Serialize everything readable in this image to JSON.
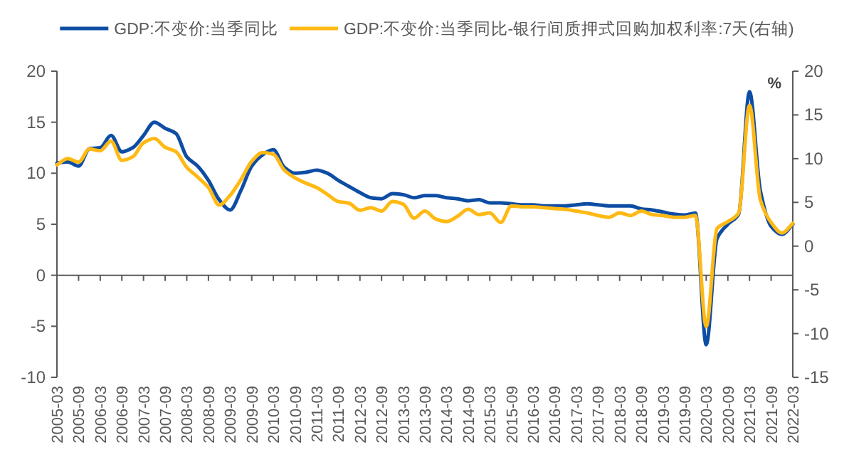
{
  "chart_data": {
    "type": "line",
    "legend": "top",
    "y2label": "%",
    "categories": [
      "2005-03",
      null,
      "2005-09",
      null,
      "2006-03",
      null,
      "2006-09",
      null,
      "2007-03",
      null,
      "2007-09",
      null,
      "2008-03",
      null,
      "2008-09",
      null,
      "2009-03",
      null,
      "2009-09",
      null,
      "2010-03",
      null,
      "2010-09",
      null,
      "2011-03",
      null,
      "2011-09",
      null,
      "2012-03",
      null,
      "2012-09",
      null,
      "2013-03",
      null,
      "2013-09",
      null,
      "2014-03",
      null,
      "2014-09",
      null,
      "2015-03",
      null,
      "2015-09",
      null,
      "2016-03",
      null,
      "2016-09",
      null,
      "2017-03",
      null,
      "2017-09",
      null,
      "2018-03",
      null,
      "2018-09",
      null,
      "2019-03",
      null,
      "2019-09",
      null,
      "2020-03",
      null,
      "2020-09",
      null,
      "2021-03",
      null,
      "2021-09",
      null,
      "2022-03"
    ],
    "ylim": [
      -10,
      20
    ],
    "yticks": [
      -10,
      -5,
      0,
      5,
      10,
      15,
      20
    ],
    "y2lim": [
      -15,
      20
    ],
    "y2ticks": [
      -15,
      -10,
      -5,
      0,
      5,
      10,
      15,
      20
    ],
    "series": [
      {
        "name": "GDP:不变价:当季同比",
        "color": "#0e4da4",
        "values": [
          11.0,
          11.1,
          10.7,
          12.4,
          12.5,
          13.7,
          12.1,
          12.5,
          13.7,
          15.0,
          14.4,
          13.9,
          11.6,
          10.7,
          9.3,
          7.4,
          6.4,
          8.3,
          10.7,
          11.8,
          12.3,
          10.6,
          10.0,
          10.1,
          10.3,
          10.0,
          9.3,
          8.7,
          8.1,
          7.6,
          7.5,
          8.0,
          7.9,
          7.6,
          7.8,
          7.8,
          7.6,
          7.5,
          7.3,
          7.4,
          7.1,
          7.1,
          7.0,
          6.9,
          6.9,
          6.8,
          6.8,
          6.8,
          6.9,
          7.0,
          6.9,
          6.8,
          6.8,
          6.8,
          6.5,
          6.4,
          6.2,
          6.0,
          5.9,
          6.1,
          -6.8,
          3.6,
          5.0,
          6.0,
          18.0,
          8.3,
          4.8,
          4.0,
          5.0
        ]
      },
      {
        "name": "GDP:不变价:当季同比-银行间质押式回购加权利率:7天(右轴)",
        "color": "#ffb914",
        "axis": "y2",
        "values": [
          9.3,
          10.0,
          9.6,
          11.1,
          10.9,
          12.0,
          9.8,
          10.2,
          11.8,
          12.3,
          11.3,
          10.8,
          9.0,
          7.9,
          6.7,
          4.7,
          5.8,
          7.6,
          9.7,
          10.7,
          10.5,
          8.7,
          7.8,
          7.2,
          6.7,
          5.9,
          5.1,
          4.9,
          4.1,
          4.4,
          4.0,
          5.1,
          4.8,
          3.2,
          4.0,
          3.1,
          2.8,
          3.4,
          4.2,
          3.6,
          3.8,
          2.7,
          4.6,
          4.5,
          4.5,
          4.4,
          4.3,
          4.2,
          4.0,
          3.8,
          3.5,
          3.3,
          3.8,
          3.5,
          4.0,
          3.6,
          3.5,
          3.3,
          3.3,
          3.5,
          -9.2,
          2.0,
          2.8,
          3.8,
          16.1,
          5.3,
          2.7,
          1.5,
          2.6
        ]
      }
    ]
  }
}
